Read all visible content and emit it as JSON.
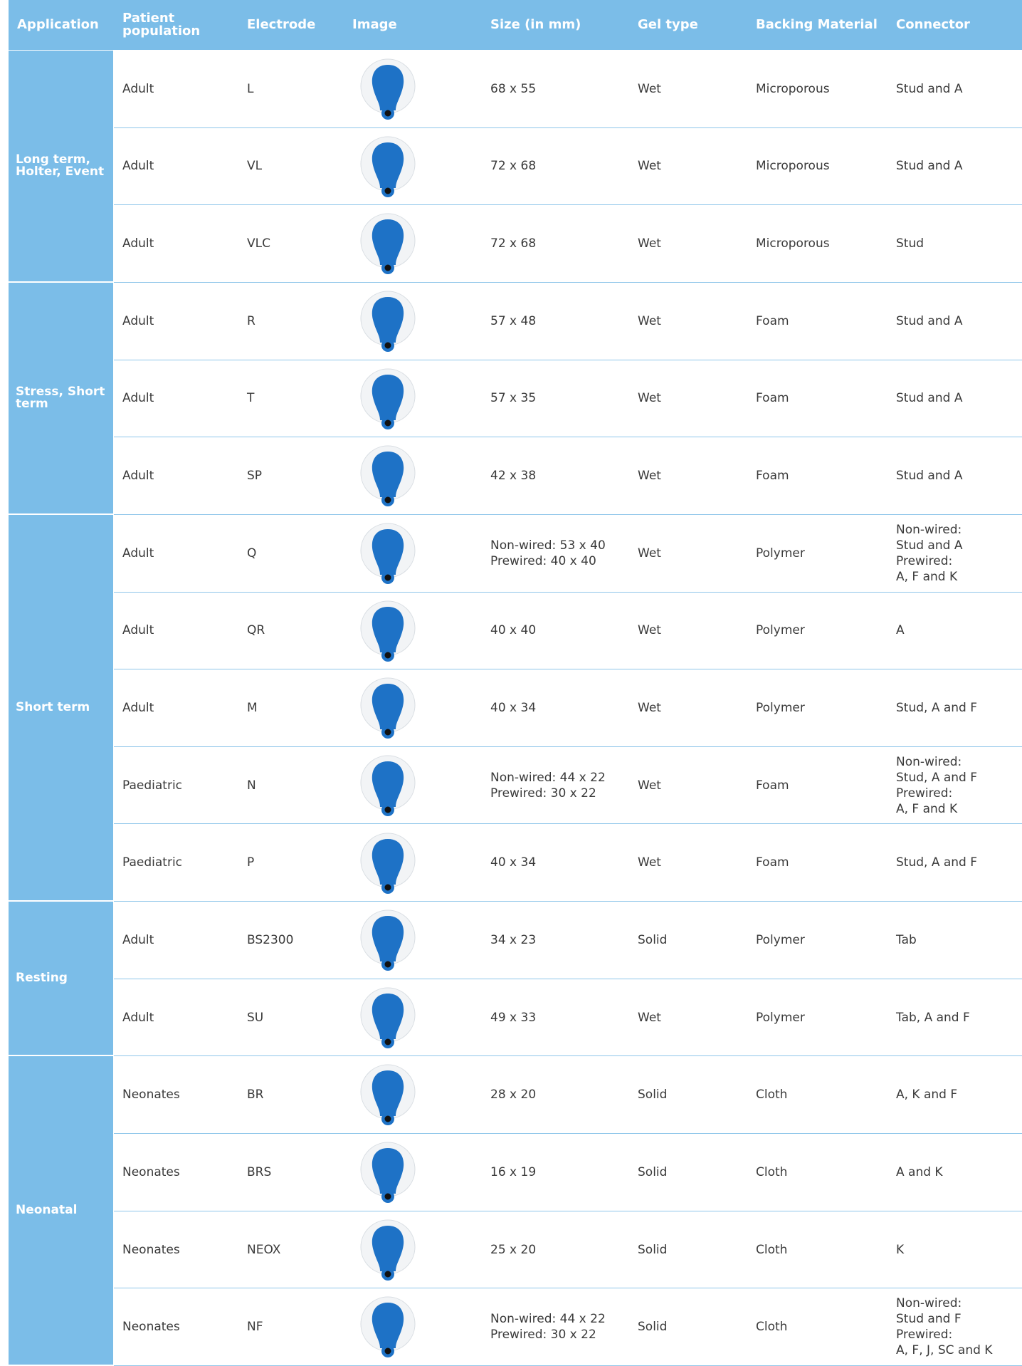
{
  "table": {
    "header": [
      "Application",
      "Patient population",
      "Electrode",
      "Image",
      "Size (in mm)",
      "Gel type",
      "Backing Material",
      "Connector"
    ],
    "groups": [
      {
        "label": "Long term, Holter, Event",
        "rows": [
          {
            "population": "Adult",
            "electrode": "L",
            "size": [
              "68 x 55"
            ],
            "gel": "Wet",
            "backing": "Microporous",
            "connector": [
              "Stud and A"
            ]
          },
          {
            "population": "Adult",
            "electrode": "VL",
            "size": [
              "72 x 68"
            ],
            "gel": "Wet",
            "backing": "Microporous",
            "connector": [
              "Stud and A"
            ]
          },
          {
            "population": "Adult",
            "electrode": "VLC",
            "size": [
              "72 x 68"
            ],
            "gel": "Wet",
            "backing": "Microporous",
            "connector": [
              "Stud"
            ]
          }
        ]
      },
      {
        "label": "Stress, Short term",
        "rows": [
          {
            "population": "Adult",
            "electrode": "R",
            "size": [
              "57 x 48"
            ],
            "gel": "Wet",
            "backing": "Foam",
            "connector": [
              "Stud and A"
            ]
          },
          {
            "population": "Adult",
            "electrode": "T",
            "size": [
              "57 x 35"
            ],
            "gel": "Wet",
            "backing": "Foam",
            "connector": [
              "Stud and A"
            ]
          },
          {
            "population": "Adult",
            "electrode": "SP",
            "size": [
              "42 x 38"
            ],
            "gel": "Wet",
            "backing": "Foam",
            "connector": [
              "Stud and A"
            ]
          }
        ]
      },
      {
        "label": "Short term",
        "rows": [
          {
            "population": "Adult",
            "electrode": "Q",
            "size": [
              "Non-wired: 53 x 40",
              "Prewired: 40 x 40"
            ],
            "gel": "Wet",
            "backing": "Polymer",
            "connector": [
              "Non-wired:",
              "Stud and A",
              "Prewired:",
              "A, F and K"
            ]
          },
          {
            "population": "Adult",
            "electrode": "QR",
            "size": [
              "40 x 40"
            ],
            "gel": "Wet",
            "backing": "Polymer",
            "connector": [
              "A"
            ]
          },
          {
            "population": "Adult",
            "electrode": "M",
            "size": [
              "40 x 34"
            ],
            "gel": "Wet",
            "backing": "Polymer",
            "connector": [
              "Stud, A and F"
            ]
          },
          {
            "population": "Paediatric",
            "electrode": "N",
            "size": [
              "Non-wired: 44 x 22",
              "Prewired: 30 x 22"
            ],
            "gel": "Wet",
            "backing": "Foam",
            "connector": [
              "Non-wired:",
              "Stud, A and F",
              "Prewired:",
              "A, F and K"
            ]
          },
          {
            "population": "Paediatric",
            "electrode": "P",
            "size": [
              "40 x 34"
            ],
            "gel": "Wet",
            "backing": "Foam",
            "connector": [
              "Stud, A and F"
            ]
          }
        ]
      },
      {
        "label": "Resting",
        "rows": [
          {
            "population": "Adult",
            "electrode": "BS2300",
            "size": [
              "34 x 23"
            ],
            "gel": "Solid",
            "backing": "Polymer",
            "connector": [
              "Tab"
            ]
          },
          {
            "population": "Adult",
            "electrode": "SU",
            "size": [
              "49 x 33"
            ],
            "gel": "Wet",
            "backing": "Polymer",
            "connector": [
              "Tab, A and F"
            ]
          }
        ]
      },
      {
        "label": "Neonatal",
        "rows": [
          {
            "population": "Neonates",
            "electrode": "BR",
            "size": [
              "28 x 20"
            ],
            "gel": "Solid",
            "backing": "Cloth",
            "connector": [
              "A, K and F"
            ]
          },
          {
            "population": "Neonates",
            "electrode": "BRS",
            "size": [
              "16 x 19"
            ],
            "gel": "Solid",
            "backing": "Cloth",
            "connector": [
              "A and K"
            ]
          },
          {
            "population": "Neonates",
            "electrode": "NEOX",
            "size": [
              "25 x 20"
            ],
            "gel": "Solid",
            "backing": "Cloth",
            "connector": [
              "K"
            ]
          },
          {
            "population": "Neonates",
            "electrode": "NF",
            "size": [
              "Non-wired: 44 x 22",
              "Prewired: 30 x 22"
            ],
            "gel": "Solid",
            "backing": "Cloth",
            "connector": [
              "Non-wired:",
              "Stud and F",
              "Prewired:",
              "A, F, J, SC and K"
            ]
          }
        ]
      }
    ]
  }
}
